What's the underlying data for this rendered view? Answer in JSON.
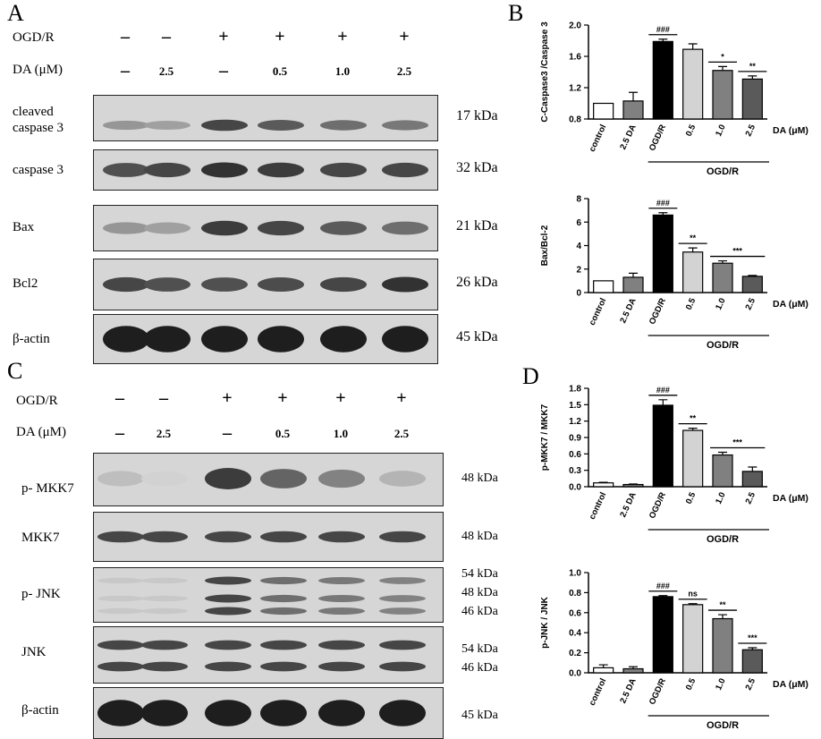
{
  "panels": {
    "A": {
      "letter": "A"
    },
    "B": {
      "letter": "B"
    },
    "C": {
      "letter": "C"
    },
    "D": {
      "letter": "D"
    }
  },
  "conditions": {
    "ogdr_label": "OGD/R",
    "da_label": "DA (μM)",
    "ogdr_signs": [
      "–",
      "–",
      "+",
      "+",
      "+",
      "+"
    ],
    "da_doses": [
      "–",
      "2.5",
      "–",
      "0.5",
      "1.0",
      "2.5"
    ]
  },
  "blots_A": [
    {
      "label": "cleaved caspase 3",
      "kda": "17 kDa",
      "intensity": [
        0.35,
        0.3,
        0.75,
        0.65,
        0.55,
        0.5
      ]
    },
    {
      "label": "caspase 3",
      "kda": "32 kDa",
      "intensity": [
        0.7,
        0.75,
        0.85,
        0.8,
        0.75,
        0.75
      ]
    },
    {
      "label": "Bax",
      "kda": "21 kDa",
      "intensity": [
        0.35,
        0.3,
        0.8,
        0.75,
        0.65,
        0.55
      ]
    },
    {
      "label": "Bcl2",
      "kda": "26 kDa",
      "intensity": [
        0.75,
        0.7,
        0.7,
        0.72,
        0.75,
        0.85
      ]
    },
    {
      "label": "β-actin",
      "kda": "45 kDa",
      "intensity": [
        0.95,
        0.95,
        0.95,
        0.95,
        0.95,
        0.95
      ]
    }
  ],
  "blots_C": [
    {
      "label": "p- MKK7",
      "kda": [
        "48 kDa"
      ],
      "intensity": [
        0.15,
        0.05,
        0.8,
        0.6,
        0.45,
        0.2
      ]
    },
    {
      "label": "MKK7",
      "kda": [
        "48 kDa"
      ],
      "intensity": [
        0.75,
        0.75,
        0.75,
        0.75,
        0.75,
        0.75
      ]
    },
    {
      "label": "p- JNK",
      "kda": [
        "54 kDa",
        "48 kDa",
        "46 kDa"
      ],
      "intensity": [
        0.1,
        0.1,
        0.75,
        0.55,
        0.5,
        0.45
      ]
    },
    {
      "label": "JNK",
      "kda": [
        "54 kDa",
        "46 kDa"
      ],
      "intensity": [
        0.75,
        0.75,
        0.75,
        0.75,
        0.75,
        0.75
      ]
    },
    {
      "label": "β-actin",
      "kda": [
        "45 kDa"
      ],
      "intensity": [
        0.95,
        0.95,
        0.95,
        0.95,
        0.95,
        0.95
      ]
    }
  ],
  "chart_data": [
    {
      "type": "bar",
      "ylabel": "C-Caspase3 /Caspase 3",
      "categories": [
        "control",
        "2.5 DA",
        "OGD/R",
        "0.5",
        "1.0",
        "2.5"
      ],
      "values": [
        1.0,
        1.03,
        1.79,
        1.69,
        1.42,
        1.31
      ],
      "errors": [
        0,
        0.11,
        0.03,
        0.07,
        0.05,
        0.04
      ],
      "ylim": [
        0.8,
        2.0
      ],
      "yticks": [
        "0.8",
        "1.2",
        "1.6",
        "2.0"
      ],
      "fills": [
        "#ffffff",
        "#808080",
        "#000000",
        "#d3d3d3",
        "#808080",
        "#5a5a5a"
      ],
      "annotations": [
        "",
        "",
        "###",
        "",
        "*",
        "**"
      ],
      "group_label": "OGD/R",
      "dose_unit": "DA (μM)"
    },
    {
      "type": "bar",
      "ylabel": "Bax/Bcl-2",
      "categories": [
        "control",
        "2.5 DA",
        "OGD/R",
        "0.5",
        "1.0",
        "2.5"
      ],
      "values": [
        1.0,
        1.3,
        6.6,
        3.45,
        2.5,
        1.38
      ],
      "errors": [
        0,
        0.35,
        0.2,
        0.35,
        0.2,
        0.08
      ],
      "ylim": [
        0,
        8
      ],
      "yticks": [
        "0",
        "2",
        "4",
        "6",
        "8"
      ],
      "fills": [
        "#ffffff",
        "#808080",
        "#000000",
        "#d3d3d3",
        "#808080",
        "#5a5a5a"
      ],
      "annotations": [
        "",
        "",
        "###",
        "**",
        "***",
        ""
      ],
      "group_label": "OGD/R",
      "dose_unit": "DA (μM)"
    },
    {
      "type": "bar",
      "ylabel": "p-MKK7 / MKK7",
      "categories": [
        "control",
        "2.5 DA",
        "OGD/R",
        "0.5",
        "1.0",
        "2.5"
      ],
      "values": [
        0.07,
        0.04,
        1.49,
        1.03,
        0.58,
        0.28
      ],
      "errors": [
        0.01,
        0.01,
        0.1,
        0.04,
        0.05,
        0.08
      ],
      "ylim": [
        0,
        1.8
      ],
      "yticks": [
        "0.0",
        "0.3",
        "0.6",
        "0.9",
        "1.2",
        "1.5",
        "1.8"
      ],
      "fills": [
        "#ffffff",
        "#808080",
        "#000000",
        "#d3d3d3",
        "#808080",
        "#5a5a5a"
      ],
      "annotations": [
        "",
        "",
        "###",
        "**",
        "***",
        ""
      ],
      "group_label": "OGD/R",
      "dose_unit": "DA (μM)"
    },
    {
      "type": "bar",
      "ylabel": "p-JNK / JNK",
      "categories": [
        "control",
        "2.5 DA",
        "OGD/R",
        "0.5",
        "1.0",
        "2.5"
      ],
      "values": [
        0.05,
        0.04,
        0.76,
        0.68,
        0.54,
        0.23
      ],
      "errors": [
        0.03,
        0.02,
        0.01,
        0.01,
        0.04,
        0.02
      ],
      "ylim": [
        0,
        1.0
      ],
      "yticks": [
        "0.0",
        "0.2",
        "0.4",
        "0.6",
        "0.8",
        "1.0"
      ],
      "fills": [
        "#ffffff",
        "#808080",
        "#000000",
        "#d3d3d3",
        "#808080",
        "#5a5a5a"
      ],
      "annotations": [
        "",
        "",
        "###",
        "ns",
        "**",
        "***"
      ],
      "group_label": "OGD/R",
      "dose_unit": "DA (μM)"
    }
  ]
}
